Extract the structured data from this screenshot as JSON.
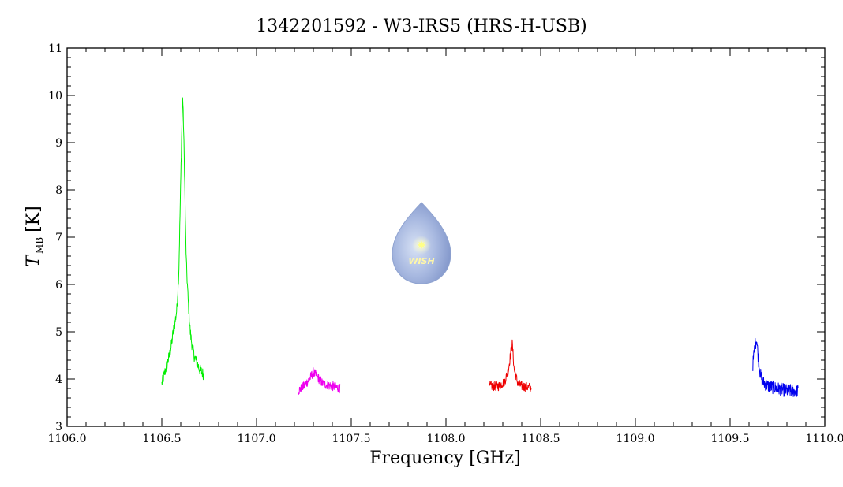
{
  "chart_data": {
    "type": "line",
    "title": "1342201592 - W3-IRS5 (HRS-H-USB)",
    "xlabel": "Frequency [GHz]",
    "ylabel_main": "T",
    "ylabel_sub": "MB",
    "ylabel_unit": "[K]",
    "xlim": [
      1106.0,
      1110.0
    ],
    "ylim": [
      3,
      11
    ],
    "x_ticks": [
      "1106.0",
      "1106.5",
      "1107.0",
      "1107.5",
      "1108.0",
      "1108.5",
      "1109.0",
      "1109.5",
      "1110.0"
    ],
    "y_ticks": [
      "3",
      "4",
      "5",
      "6",
      "7",
      "8",
      "9",
      "10",
      "11"
    ],
    "grid": false,
    "series": [
      {
        "color": "#00ee00",
        "x": [
          1106.5,
          1106.52,
          1106.54,
          1106.55,
          1106.56,
          1106.57,
          1106.58,
          1106.59,
          1106.6,
          1106.605,
          1106.61,
          1106.615,
          1106.62,
          1106.625,
          1106.63,
          1106.64,
          1106.65,
          1106.66,
          1106.67,
          1106.68,
          1106.7,
          1106.72
        ],
        "y": [
          3.9,
          4.2,
          4.5,
          4.7,
          5.0,
          5.2,
          5.5,
          6.3,
          8.2,
          9.2,
          10.0,
          9.3,
          8.4,
          7.2,
          6.4,
          5.6,
          5.0,
          4.7,
          4.5,
          4.4,
          4.2,
          4.1
        ]
      },
      {
        "color": "#ee00ee",
        "x": [
          1107.22,
          1107.25,
          1107.28,
          1107.3,
          1107.32,
          1107.35,
          1107.4,
          1107.44
        ],
        "y": [
          3.75,
          3.85,
          4.0,
          4.15,
          4.05,
          3.9,
          3.85,
          3.8
        ]
      },
      {
        "color": "#ee0000",
        "x": [
          1108.23,
          1108.28,
          1108.31,
          1108.33,
          1108.345,
          1108.35,
          1108.36,
          1108.38,
          1108.4,
          1108.45
        ],
        "y": [
          3.85,
          3.85,
          3.95,
          4.2,
          4.65,
          4.75,
          4.2,
          3.9,
          3.85,
          3.82
        ]
      },
      {
        "color": "#0000ee",
        "x": [
          1109.62,
          1109.63,
          1109.64,
          1109.65,
          1109.66,
          1109.67,
          1109.7,
          1109.75,
          1109.8,
          1109.86
        ],
        "y": [
          4.3,
          4.7,
          4.85,
          4.4,
          4.1,
          3.95,
          3.85,
          3.8,
          3.75,
          3.75
        ]
      }
    ]
  },
  "watermark": {
    "text": "WISH",
    "icon": "water-drop-logo-icon"
  }
}
